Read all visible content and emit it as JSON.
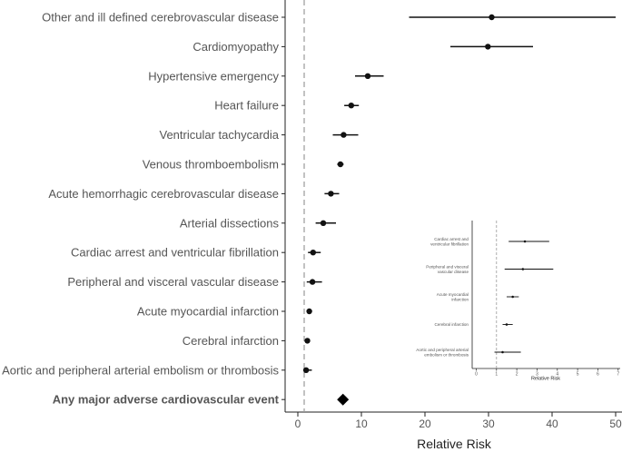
{
  "chart_data": [
    {
      "type": "forest",
      "xlabel": "Relative Risk",
      "xlim": [
        -2,
        51
      ],
      "xticks": [
        0,
        10,
        20,
        30,
        40,
        50
      ],
      "reference_line": 1,
      "rows": [
        {
          "label": "Other and ill  defined cerebrovascular disease",
          "estimate": 30.5,
          "low": 17.5,
          "high": 50.0
        },
        {
          "label": "Cardiomyopathy",
          "estimate": 29.9,
          "low": 24.0,
          "high": 37.0
        },
        {
          "label": "Hypertensive emergency",
          "estimate": 11.0,
          "low": 9.0,
          "high": 13.5
        },
        {
          "label": "Heart failure",
          "estimate": 8.4,
          "low": 7.3,
          "high": 9.6
        },
        {
          "label": "Ventricular tachycardia",
          "estimate": 7.2,
          "low": 5.5,
          "high": 9.5
        },
        {
          "label": "Venous thromboembolism",
          "estimate": 6.7,
          "low": 6.2,
          "high": 7.2
        },
        {
          "label": "Acute hemorrhagic cerebrovascular disease",
          "estimate": 5.2,
          "low": 4.2,
          "high": 6.5
        },
        {
          "label": "Arterial dissections",
          "estimate": 4.0,
          "low": 2.8,
          "high": 6.0
        },
        {
          "label": "Cardiac arrest and ventricular fibrillation",
          "estimate": 2.4,
          "low": 1.6,
          "high": 3.6
        },
        {
          "label": "Peripheral and visceral vascular disease",
          "estimate": 2.3,
          "low": 1.4,
          "high": 3.8
        },
        {
          "label": "Acute myocardial infarction",
          "estimate": 1.8,
          "low": 1.5,
          "high": 2.1
        },
        {
          "label": "Cerebral infarction",
          "estimate": 1.5,
          "low": 1.3,
          "high": 1.8
        },
        {
          "label": "Aortic and peripheral arterial embolism or thrombosis",
          "estimate": 1.3,
          "low": 0.9,
          "high": 2.2
        },
        {
          "label": "Any major adverse cardiovascular event",
          "estimate": 7.1,
          "summary": true
        }
      ]
    },
    {
      "type": "forest",
      "inset": true,
      "xlabel": "Relative Risk",
      "xlim": [
        -0.2,
        7.1
      ],
      "xticks": [
        0,
        1,
        2,
        3,
        4,
        5,
        6,
        7
      ],
      "reference_line": 1,
      "rows": [
        {
          "label": [
            "Cardiac arrest and",
            "ventricular fibrillation"
          ],
          "estimate": 2.4,
          "low": 1.6,
          "high": 3.6
        },
        {
          "label": [
            "Peripheral and visceral",
            "vascular disease"
          ],
          "estimate": 2.3,
          "low": 1.4,
          "high": 3.8
        },
        {
          "label": [
            "Acute myocardial",
            "infarction"
          ],
          "estimate": 1.8,
          "low": 1.5,
          "high": 2.1
        },
        {
          "label": [
            "Cerebral infarction"
          ],
          "estimate": 1.5,
          "low": 1.3,
          "high": 1.8
        },
        {
          "label": [
            "Aortic and peripheral arterial",
            "embolism or thrombosis"
          ],
          "estimate": 1.3,
          "low": 0.9,
          "high": 2.2
        }
      ]
    }
  ]
}
